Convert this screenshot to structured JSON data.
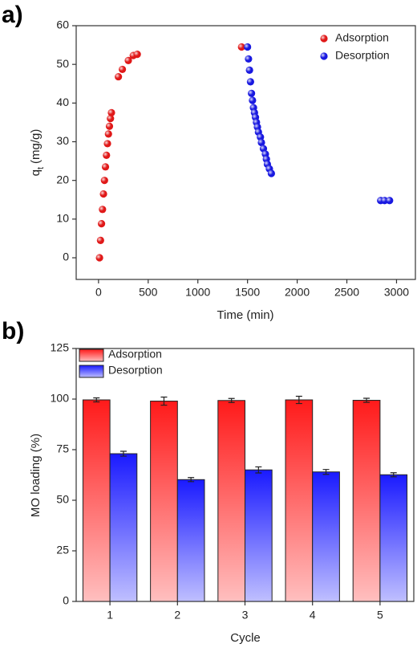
{
  "chart_data": [
    {
      "type": "scatter",
      "panel_label": "a)",
      "x_label": "Time (min)",
      "y_label": {
        "main": "q",
        "sub": "t",
        "unit": "(mg/g)"
      },
      "xlim": [
        -225,
        3190
      ],
      "xticks": [
        0,
        500,
        1000,
        1500,
        2000,
        2500,
        3000
      ],
      "ylim": [
        -5.6,
        60
      ],
      "yticks": [
        0,
        10,
        20,
        30,
        40,
        50,
        60
      ],
      "legend": "top-right",
      "series": [
        {
          "name": "Adsorption",
          "color": "#e01818",
          "x": [
            10,
            20,
            30,
            40,
            50,
            60,
            70,
            80,
            90,
            100,
            110,
            120,
            130,
            200,
            240,
            300,
            350,
            390,
            1440
          ],
          "values": [
            0,
            4.5,
            8.8,
            12.5,
            16.5,
            20,
            23.5,
            26.5,
            29.5,
            32,
            34,
            36,
            37.5,
            46.8,
            48.7,
            51,
            52.3,
            52.6,
            54.5
          ]
        },
        {
          "name": "Desorption",
          "color": "#1818e0",
          "x": [
            1500,
            1510,
            1520,
            1530,
            1540,
            1550,
            1560,
            1570,
            1580,
            1590,
            1600,
            1610,
            1630,
            1640,
            1660,
            1680,
            1690,
            1700,
            1720,
            1740,
            2840,
            2880,
            2930
          ],
          "values": [
            54.5,
            51.4,
            48.5,
            45.5,
            42.5,
            40.7,
            38.8,
            37.5,
            36.3,
            35,
            33.8,
            32.5,
            31.2,
            29.8,
            28.2,
            26.8,
            25.5,
            24.2,
            23,
            21.8,
            14.8,
            14.8,
            14.8
          ]
        }
      ]
    },
    {
      "type": "bar",
      "panel_label": "b)",
      "x_label": "Cycle",
      "y_label": "MO loading (%)",
      "categories": [
        "1",
        "2",
        "3",
        "4",
        "5"
      ],
      "ylim": [
        0,
        125
      ],
      "yticks": [
        0,
        25,
        50,
        75,
        100,
        125
      ],
      "legend": "top-left",
      "series": [
        {
          "name": "Adsorption",
          "color": "#ff1a1a",
          "values": [
            99.6,
            99.0,
            99.3,
            99.6,
            99.4
          ],
          "errors": [
            1.0,
            2.0,
            1.0,
            1.8,
            1.0
          ]
        },
        {
          "name": "Desorption",
          "color": "#1a1aff",
          "values": [
            73.0,
            60.2,
            65.0,
            64.0,
            62.6
          ],
          "errors": [
            1.2,
            1.0,
            1.5,
            1.2,
            1.0
          ]
        }
      ]
    }
  ]
}
